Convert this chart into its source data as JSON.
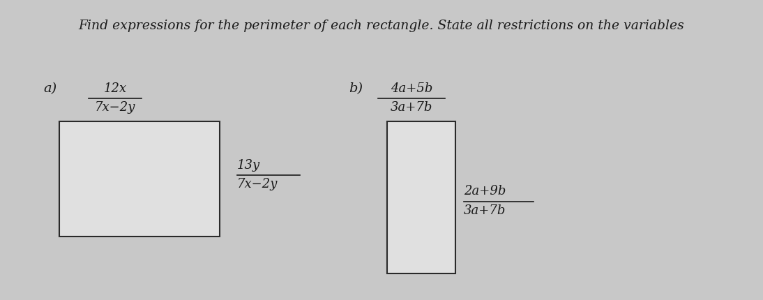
{
  "title": "Find expressions for the perimeter of each rectangle. State all restrictions on the variables",
  "title_fontsize": 13.5,
  "bg_color": "#c8c8c8",
  "label_a": "a)",
  "label_b": "b)",
  "frac_a_top_num": "12x",
  "frac_a_top_den": "7x−2y",
  "frac_a_right_num": "13y",
  "frac_a_right_den": "7x−2y",
  "frac_b_top_num": "4a+5b",
  "frac_b_top_den": "3a+7b",
  "frac_b_right_num": "2a+9b",
  "frac_b_right_den": "3a+7b",
  "text_color": "#1a1a1a",
  "rect_edge_color": "#2a2a2a",
  "rect_face_color": "#e0e0e0",
  "font_size": 13
}
